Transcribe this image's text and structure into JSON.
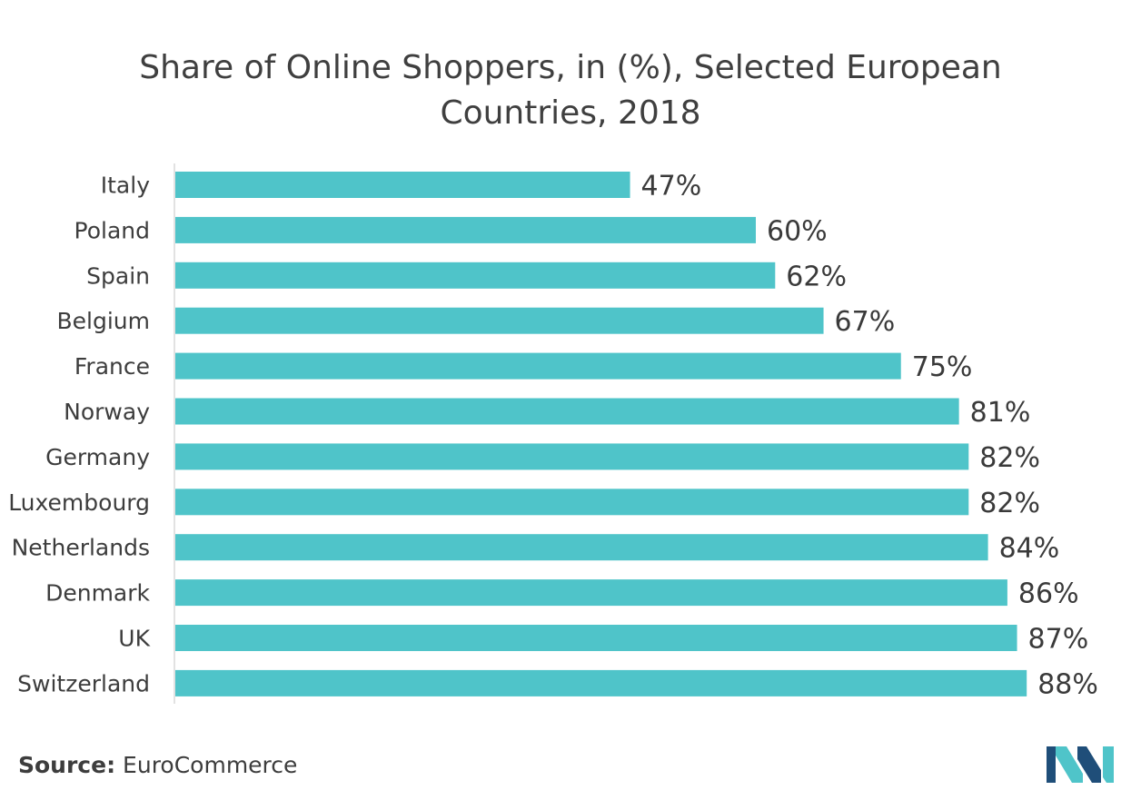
{
  "chart_data": {
    "type": "bar",
    "orientation": "horizontal",
    "title": "Share of Online Shoppers, in (%), Selected European Countries, 2018",
    "categories": [
      "Italy",
      "Poland",
      "Spain",
      "Belgium",
      "France",
      "Norway",
      "Germany",
      "Luxembourg",
      "Netherlands",
      "Denmark",
      "UK",
      "Switzerland"
    ],
    "values": [
      47,
      60,
      62,
      67,
      75,
      81,
      82,
      82,
      84,
      86,
      87,
      88
    ],
    "value_suffix": "%",
    "xlim": [
      0,
      100
    ],
    "grid": false,
    "legend": "none",
    "bar_color": "#4fc4c9"
  },
  "footer": {
    "source_label": "Source:",
    "source_value": "EuroCommerce"
  },
  "logo": {
    "icon": "company-logo-icon",
    "colors": [
      "#1f4e79",
      "#4fc4c9"
    ]
  }
}
